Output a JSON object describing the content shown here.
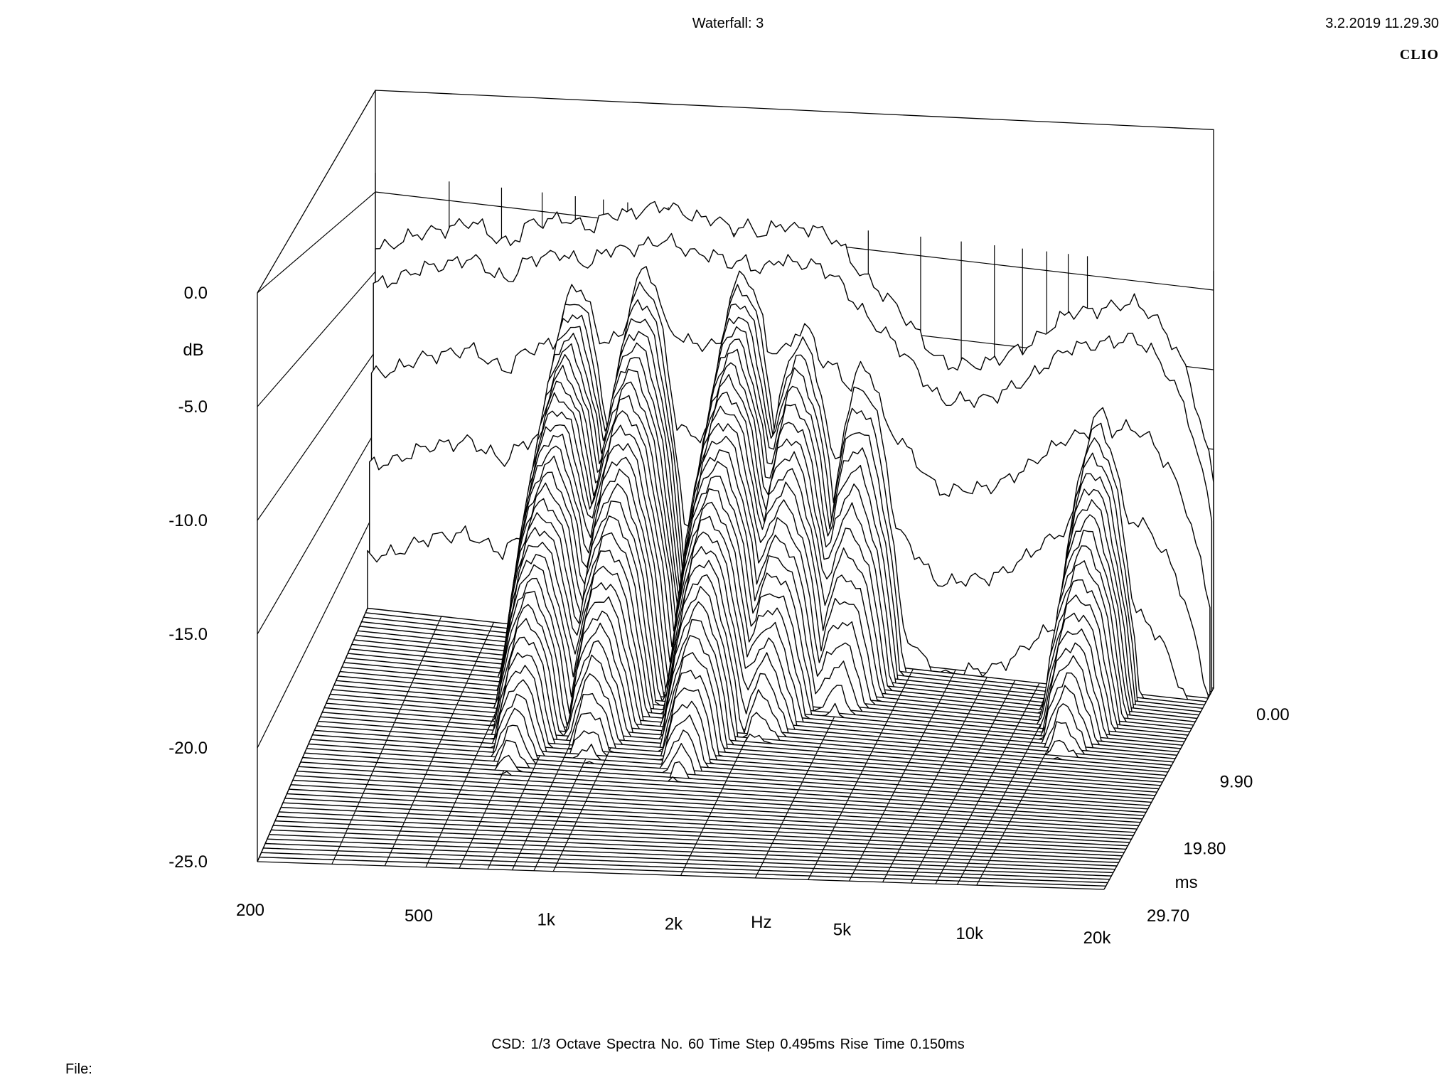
{
  "header": {
    "title": "Waterfall: 3",
    "timestamp": "3.2.2019 11.29.30",
    "brand": "CLIO"
  },
  "footer": {
    "info": "CSD:   1/3 Octave   Spectra No. 60   Time Step 0.495ms   Rise Time 0.150ms",
    "file_label": "File:"
  },
  "chart_data": {
    "type": "waterfall",
    "x_axis": {
      "label": "Hz",
      "scale": "log",
      "range": [
        200,
        20000
      ],
      "ticks": [
        {
          "value": 200,
          "label": "200"
        },
        {
          "value": 500,
          "label": "500"
        },
        {
          "value": 1000,
          "label": "1k"
        },
        {
          "value": 2000,
          "label": "2k"
        },
        {
          "value": 5000,
          "label": "5k"
        },
        {
          "value": 10000,
          "label": "10k"
        },
        {
          "value": 20000,
          "label": "20k"
        }
      ]
    },
    "y_axis": {
      "label": "dB",
      "range": [
        -25,
        0
      ],
      "ticks": [
        {
          "value": 0,
          "label": "0.0"
        },
        {
          "value": -5,
          "label": "-5.0"
        },
        {
          "value": -10,
          "label": "-10.0"
        },
        {
          "value": -15,
          "label": "-15.0"
        },
        {
          "value": -20,
          "label": "-20.0"
        },
        {
          "value": -25,
          "label": "-25.0"
        }
      ]
    },
    "z_axis": {
      "label": "ms",
      "range": [
        0,
        29.7
      ],
      "ticks": [
        {
          "value": 0,
          "label": "0.00"
        },
        {
          "value": 9.9,
          "label": "9.90"
        },
        {
          "value": 19.8,
          "label": "19.80"
        },
        {
          "value": 29.7,
          "label": "29.70"
        }
      ]
    },
    "spectra_count": 60,
    "time_step_ms": 0.495,
    "initial_response_db": [
      [
        200,
        -3.5
      ],
      [
        250,
        -2.5
      ],
      [
        300,
        -1.6
      ],
      [
        340,
        -1.2
      ],
      [
        380,
        -1.9
      ],
      [
        420,
        -2.2
      ],
      [
        460,
        -1.0
      ],
      [
        520,
        -0.6
      ],
      [
        560,
        -0.1
      ],
      [
        600,
        -0.4
      ],
      [
        660,
        -0.8
      ],
      [
        720,
        0.3
      ],
      [
        800,
        0.6
      ],
      [
        900,
        0.9
      ],
      [
        950,
        1.1
      ],
      [
        1050,
        1.3
      ],
      [
        1150,
        0.8
      ],
      [
        1300,
        0.7
      ],
      [
        1400,
        0.3
      ],
      [
        1550,
        0.7
      ],
      [
        1700,
        0.1
      ],
      [
        1850,
        0.9
      ],
      [
        2000,
        0.8
      ],
      [
        2200,
        1.1
      ],
      [
        2500,
        0.3
      ],
      [
        2800,
        -1.1
      ],
      [
        3200,
        -2.5
      ],
      [
        3600,
        -3.8
      ],
      [
        4000,
        -5.0
      ],
      [
        4400,
        -6.3
      ],
      [
        4700,
        -6.8
      ],
      [
        5200,
        -6.5
      ],
      [
        5800,
        -6.1
      ],
      [
        6500,
        -5.6
      ],
      [
        7200,
        -4.9
      ],
      [
        8000,
        -3.6
      ],
      [
        9000,
        -2.6
      ],
      [
        10000,
        -2.3
      ],
      [
        11000,
        -1.8
      ],
      [
        12000,
        -1.6
      ],
      [
        13000,
        -1.5
      ],
      [
        14500,
        -2.1
      ],
      [
        16000,
        -3.5
      ],
      [
        17500,
        -5.8
      ],
      [
        19000,
        -9.5
      ],
      [
        20000,
        -11.8
      ]
    ],
    "resonances": [
      {
        "freq": 620,
        "peak_db": -3.8,
        "decay_ms": 17
      },
      {
        "freq": 900,
        "peak_db": -2.2,
        "decay_ms": 14
      },
      {
        "freq": 1550,
        "peak_db": -1.8,
        "decay_ms": 15
      },
      {
        "freq": 2150,
        "peak_db": -4.2,
        "decay_ms": 12
      },
      {
        "freq": 3000,
        "peak_db": -5.8,
        "decay_ms": 9
      },
      {
        "freq": 11000,
        "peak_db": -7.6,
        "decay_ms": 13
      }
    ]
  }
}
